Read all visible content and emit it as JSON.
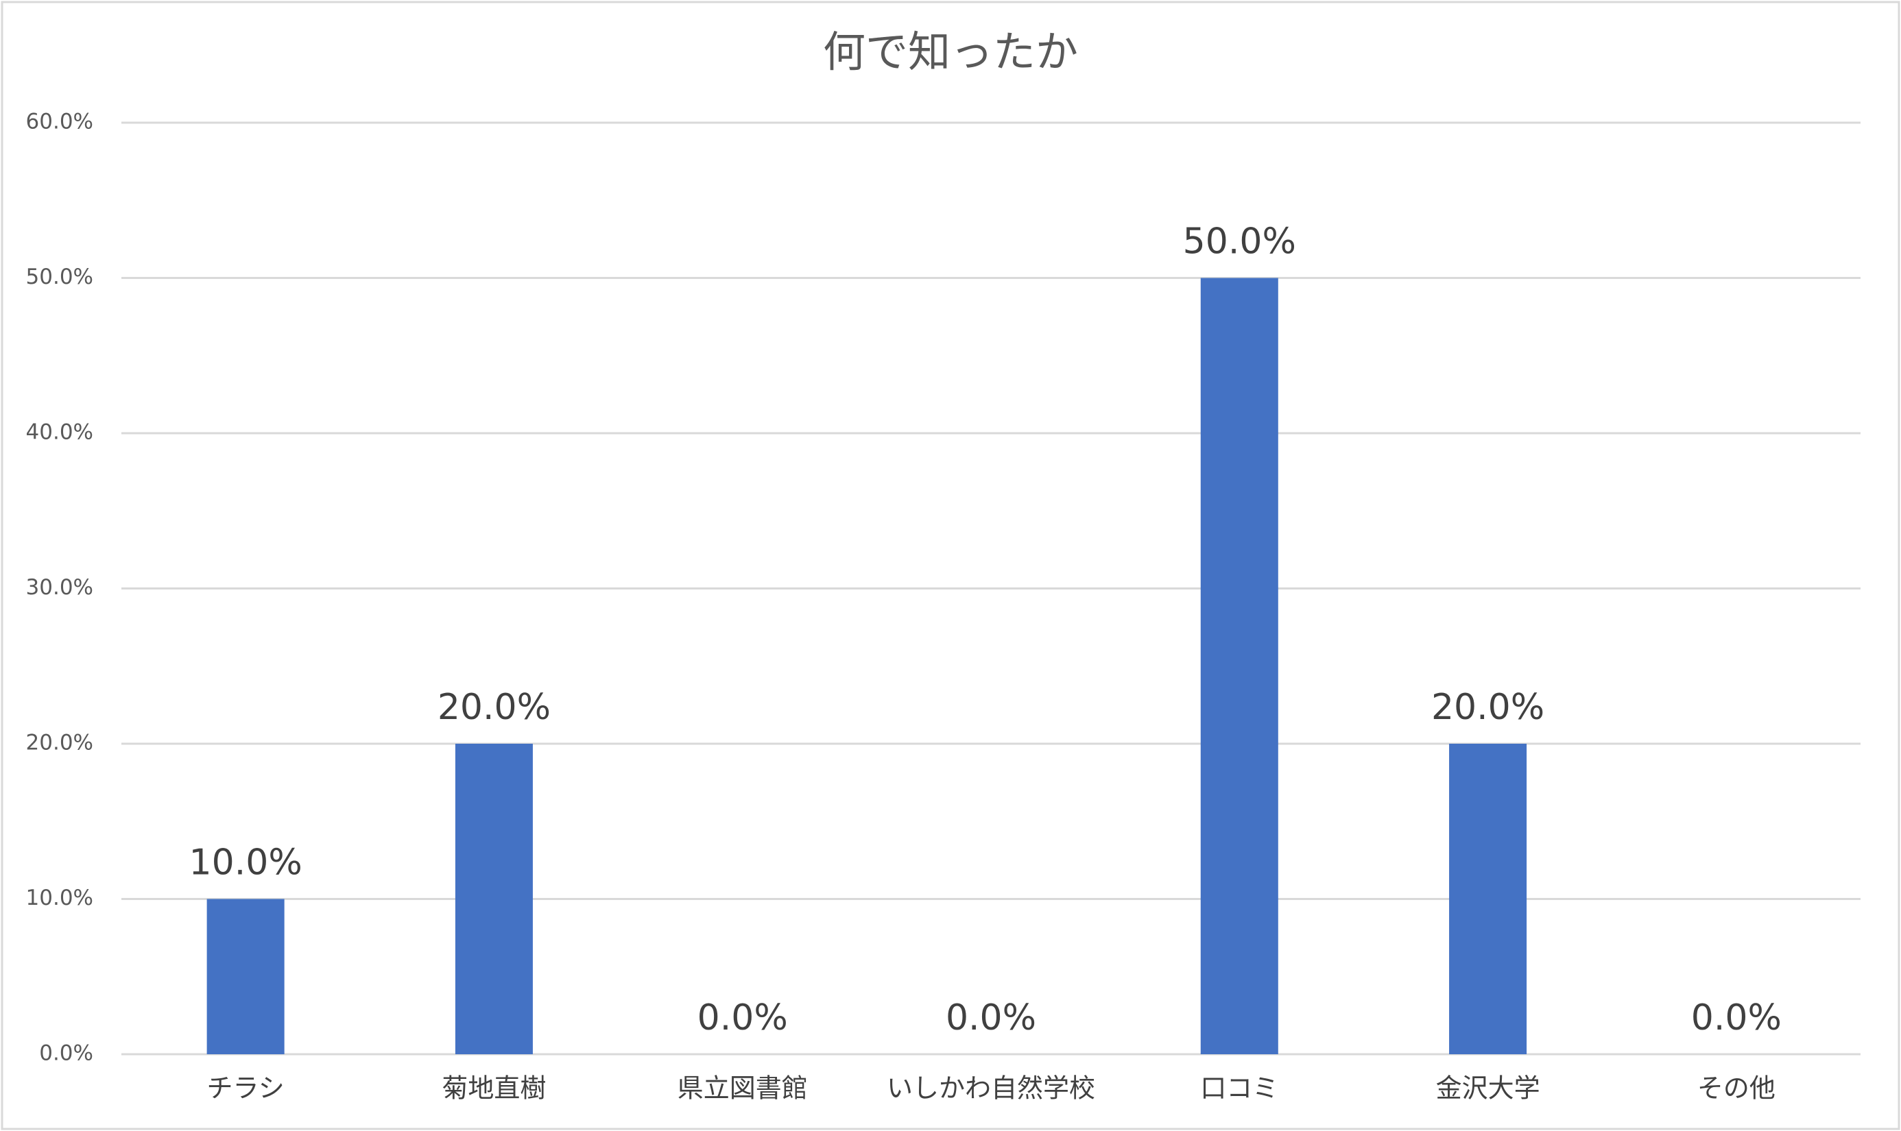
{
  "chart_data": {
    "type": "bar",
    "title": "何で知ったか",
    "categories": [
      "チラシ",
      "菊地直樹",
      "県立図書館",
      "いしかわ自然学校",
      "口コミ",
      "金沢大学",
      "その他"
    ],
    "values": [
      10,
      20,
      0,
      0,
      50,
      20,
      0
    ],
    "value_labels": [
      "10.0%",
      "20.0%",
      "0.0%",
      "0.0%",
      "50.0%",
      "20.0%",
      "0.0%"
    ],
    "color": "#4472c4",
    "ylim": [
      0,
      60
    ],
    "yticks": [
      {
        "value": 0,
        "label": "0.0%"
      },
      {
        "value": 10,
        "label": "10.0%"
      },
      {
        "value": 20,
        "label": "20.0%"
      },
      {
        "value": 30,
        "label": "30.0%"
      },
      {
        "value": 40,
        "label": "40.0%"
      },
      {
        "value": 50,
        "label": "50.0%"
      },
      {
        "value": 60,
        "label": "60.0%"
      }
    ],
    "grid": true
  }
}
